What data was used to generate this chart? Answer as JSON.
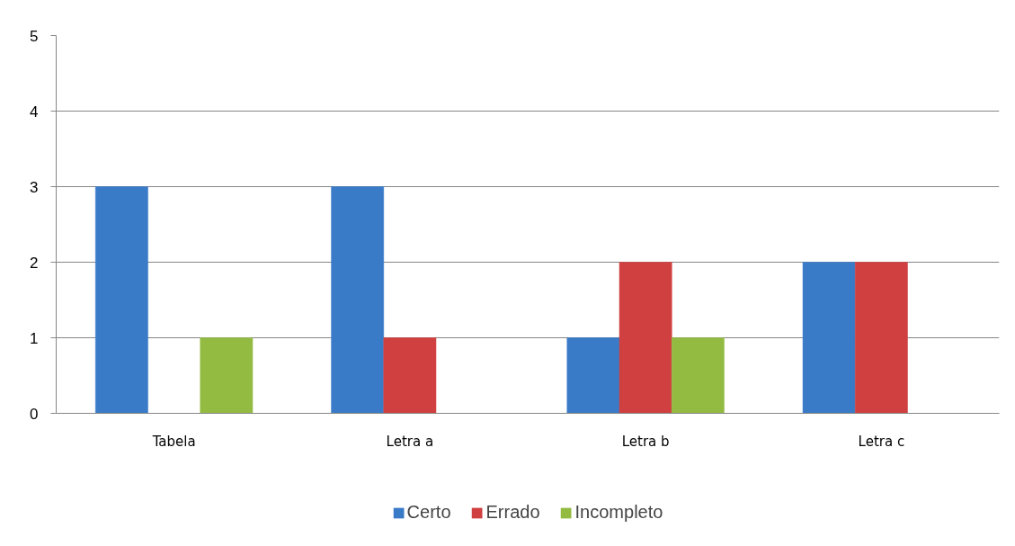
{
  "chart_data": {
    "type": "bar",
    "categories": [
      "Tabela",
      "Letra a",
      "Letra b",
      "Letra c"
    ],
    "series": [
      {
        "name": "Certo",
        "color": "#3a7bc8",
        "values": [
          3,
          3,
          1,
          2
        ]
      },
      {
        "name": "Errado",
        "color": "#d04040",
        "values": [
          0,
          1,
          2,
          2
        ]
      },
      {
        "name": "Incompleto",
        "color": "#93bb42",
        "values": [
          1,
          0,
          1,
          0
        ]
      }
    ],
    "ylim": [
      0,
      5
    ],
    "yticks": [
      0,
      1,
      2,
      3,
      4,
      5
    ],
    "grid": "y",
    "legend": "bottom"
  }
}
